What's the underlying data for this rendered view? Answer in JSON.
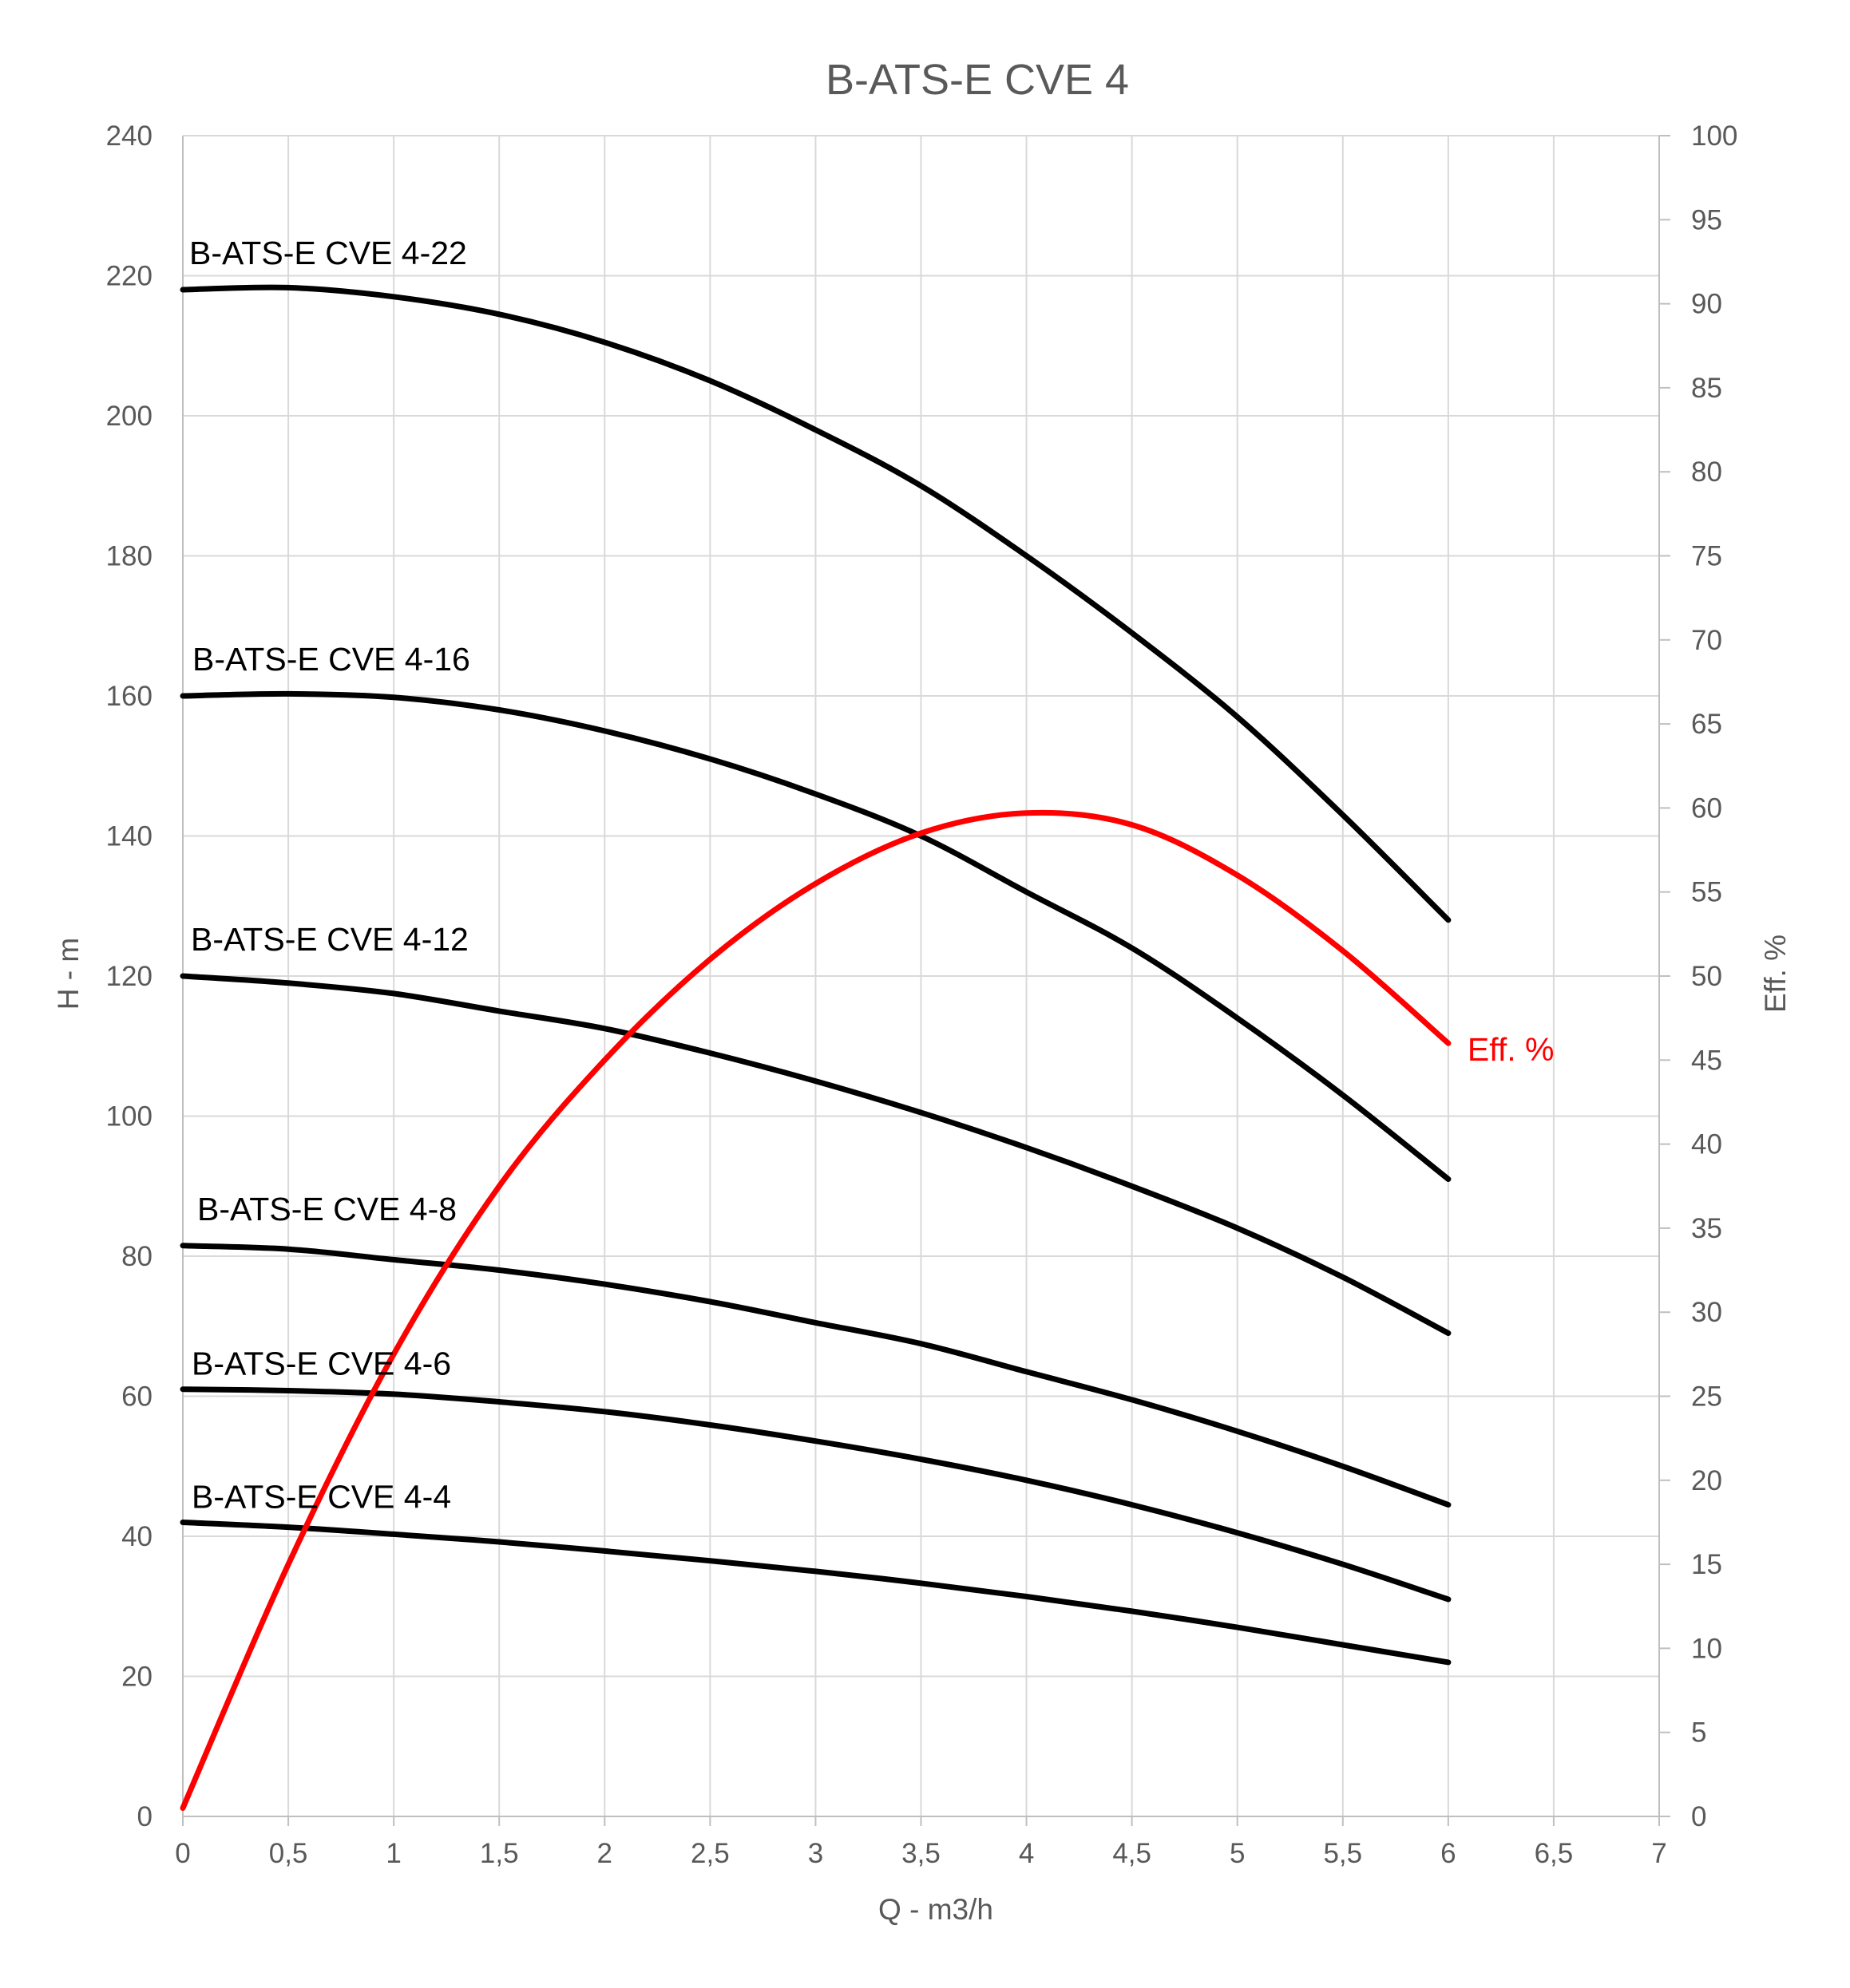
{
  "chart_data": {
    "type": "line",
    "title": "B-ATS-E CVE 4",
    "xlabel": "Q - m3/h",
    "ylabel": "H - m",
    "y2label": "Eff. %",
    "xlim": [
      0,
      7
    ],
    "ylim": [
      0,
      240
    ],
    "y2lim": [
      0,
      100
    ],
    "x_ticks": [
      0,
      0.5,
      1,
      1.5,
      2,
      2.5,
      3,
      3.5,
      4,
      4.5,
      5,
      5.5,
      6,
      6.5,
      7
    ],
    "x_tick_labels": [
      "0",
      "0,5",
      "1",
      "1,5",
      "2",
      "2,5",
      "3",
      "3,5",
      "4",
      "4,5",
      "5",
      "5,5",
      "6",
      "6,5",
      "7"
    ],
    "y_ticks": [
      0,
      20,
      40,
      60,
      80,
      100,
      120,
      140,
      160,
      180,
      200,
      220,
      240
    ],
    "y_tick_labels": [
      "0",
      "20",
      "40",
      "60",
      "80",
      "100",
      "120",
      "140",
      "160",
      "180",
      "200",
      "220",
      "240"
    ],
    "y2_ticks": [
      0,
      5,
      10,
      15,
      20,
      25,
      30,
      35,
      40,
      45,
      50,
      55,
      60,
      65,
      70,
      75,
      80,
      85,
      90,
      95,
      100
    ],
    "y2_tick_labels": [
      "0",
      "5",
      "10",
      "15",
      "20",
      "25",
      "30",
      "35",
      "40",
      "45",
      "50",
      "55",
      "60",
      "65",
      "70",
      "75",
      "80",
      "85",
      "90",
      "95",
      "100"
    ],
    "grid": true,
    "x": [
      0,
      0.5,
      1,
      1.5,
      2,
      2.5,
      3,
      3.5,
      4,
      4.5,
      5,
      5.5,
      6
    ],
    "series": [
      {
        "name": "B-ATS-E CVE 4-22",
        "axis": "left",
        "color": "#000000",
        "values": [
          218,
          218.3,
          217,
          214.5,
          210.5,
          205,
          198,
          190,
          180,
          169,
          157,
          143,
          128
        ]
      },
      {
        "name": "B-ATS-E CVE 4-16",
        "axis": "left",
        "color": "#000000",
        "values": [
          160,
          160.3,
          159.8,
          158,
          155,
          151,
          146,
          140,
          132,
          124,
          114,
          103,
          91
        ]
      },
      {
        "name": "B-ATS-E CVE 4-12",
        "axis": "left",
        "color": "#000000",
        "values": [
          120,
          119,
          117.5,
          115,
          112.5,
          109,
          105,
          100.5,
          95.5,
          90,
          84,
          77,
          69
        ]
      },
      {
        "name": "B-ATS-E CVE 4-8",
        "axis": "left",
        "color": "#000000",
        "values": [
          81.5,
          81,
          79.5,
          78,
          76,
          73.5,
          70.5,
          67.5,
          63.5,
          59.5,
          55,
          50,
          44.5
        ]
      },
      {
        "name": "B-ATS-E CVE 4-6",
        "axis": "left",
        "color": "#000000",
        "values": [
          61,
          60.8,
          60.3,
          59.2,
          57.8,
          55.9,
          53.6,
          51,
          48,
          44.5,
          40.5,
          36,
          31
        ]
      },
      {
        "name": "B-ATS-E CVE 4-4",
        "axis": "left",
        "color": "#000000",
        "values": [
          42,
          41.3,
          40.3,
          39.2,
          37.9,
          36.5,
          35,
          33.3,
          31.4,
          29.3,
          27,
          24.5,
          22
        ]
      },
      {
        "name": "Eff. %",
        "axis": "right",
        "color": "#ff0000",
        "values": [
          0.5,
          15,
          27.5,
          37.5,
          45,
          51,
          55.5,
          58.5,
          59.7,
          59,
          56,
          51.5,
          46
        ]
      }
    ]
  }
}
